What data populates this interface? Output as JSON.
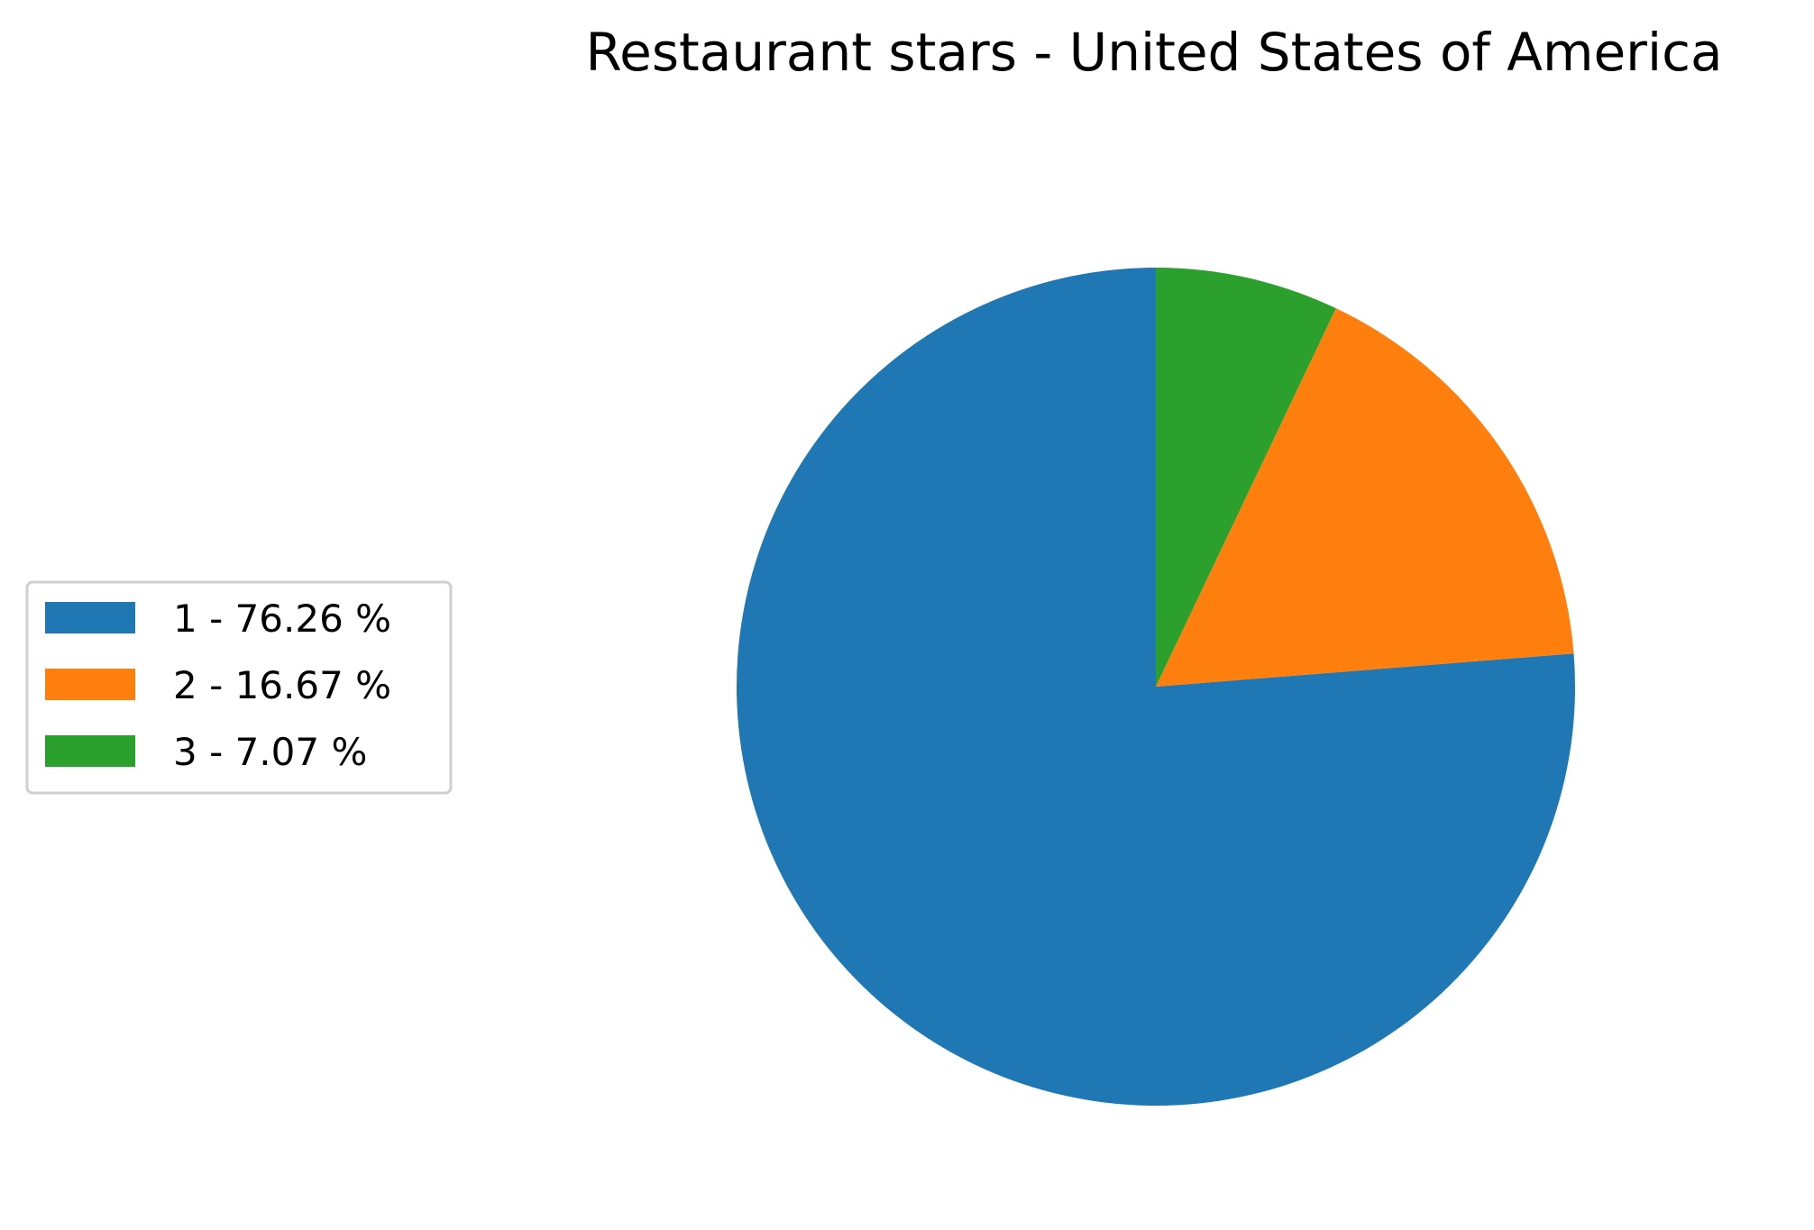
{
  "chart_data": {
    "type": "pie",
    "title": "Restaurant stars - United States of America",
    "categories": [
      "1",
      "2",
      "3"
    ],
    "values": [
      76.26,
      16.67,
      7.07
    ],
    "unit": "%",
    "legend_labels": [
      "1 - 76.26 %",
      "2 - 16.67 %",
      "3 - 7.07 %"
    ],
    "colors": [
      "#1f77b4",
      "#ff7f0e",
      "#2ca02c"
    ],
    "start_angle_deg": 90,
    "direction": "counterclockwise",
    "legend_placement": "center-left"
  }
}
